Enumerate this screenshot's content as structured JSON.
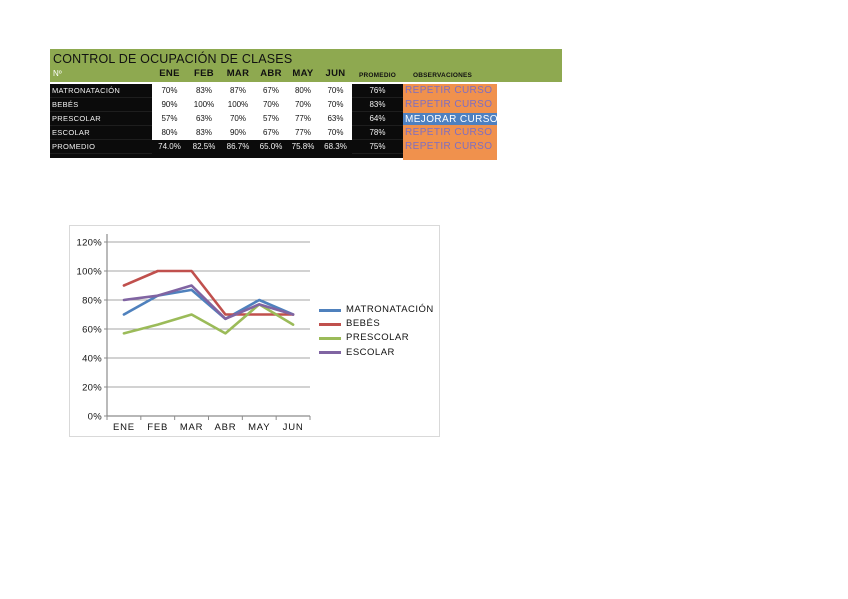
{
  "title": "CONTROL DE OCUPACIÓN DE CLASES",
  "table": {
    "columns": [
      "Nº",
      "ENE",
      "FEB",
      "MAR",
      "ABR",
      "MAY",
      "JUN",
      "PROMEDIO",
      "OBSERVACIONES"
    ],
    "rows": [
      {
        "label": "MATRONATACIÓN",
        "values": [
          "70%",
          "83%",
          "87%",
          "67%",
          "80%",
          "70%"
        ],
        "promedio": "76%",
        "observacion": "REPETIR CURSO",
        "obs_style": "repetir",
        "is_summary": false
      },
      {
        "label": "BEBÉS",
        "values": [
          "90%",
          "100%",
          "100%",
          "70%",
          "70%",
          "70%"
        ],
        "promedio": "83%",
        "observacion": "REPETIR CURSO",
        "obs_style": "repetir",
        "is_summary": false
      },
      {
        "label": "PRESCOLAR",
        "values": [
          "57%",
          "63%",
          "70%",
          "57%",
          "77%",
          "63%"
        ],
        "promedio": "64%",
        "observacion": "MEJORAR CURSO",
        "obs_style": "mejorar",
        "is_summary": false
      },
      {
        "label": "ESCOLAR",
        "values": [
          "80%",
          "83%",
          "90%",
          "67%",
          "77%",
          "70%"
        ],
        "promedio": "78%",
        "observacion": "REPETIR CURSO",
        "obs_style": "repetir",
        "is_summary": false
      },
      {
        "label": "PROMEDIO",
        "values": [
          "74.0%",
          "82.5%",
          "86.7%",
          "65.0%",
          "75.8%",
          "68.3%"
        ],
        "promedio": "75%",
        "observacion": "REPETIR CURSO",
        "obs_style": "repetir",
        "is_summary": true
      }
    ]
  },
  "colors": {
    "header_green": "#8EA950",
    "cell_black": "#0B0B0B",
    "observation_orange": "#F0914D",
    "observation_text_purple": "#7D6EC3",
    "highlight_blue": "#4E80C0",
    "gridline_gray": "#A6A6A6",
    "axis_gray": "#8C8C8C",
    "chart_border_gray": "#D9D9D9"
  },
  "chart_data": {
    "type": "line",
    "categories": [
      "ENE",
      "FEB",
      "MAR",
      "ABR",
      "MAY",
      "JUN"
    ],
    "series": [
      {
        "name": "MATRONATACIÓN",
        "color": "#4F81BD",
        "values": [
          70,
          83,
          87,
          67,
          80,
          70
        ]
      },
      {
        "name": "BEBÉS",
        "color": "#C0504D",
        "values": [
          90,
          100,
          100,
          70,
          70,
          70
        ]
      },
      {
        "name": "PRESCOLAR",
        "color": "#9BBB59",
        "values": [
          57,
          63,
          70,
          57,
          77,
          63
        ]
      },
      {
        "name": "ESCOLAR",
        "color": "#8064A2",
        "values": [
          80,
          83,
          90,
          67,
          77,
          70
        ]
      }
    ],
    "title": "",
    "xlabel": "",
    "ylabel": "",
    "ylim": [
      0,
      120
    ],
    "ytick_step": 20,
    "ytick_labels": [
      "0%",
      "20%",
      "40%",
      "60%",
      "80%",
      "100%",
      "120%"
    ],
    "grid": true,
    "legend_position": "right"
  }
}
